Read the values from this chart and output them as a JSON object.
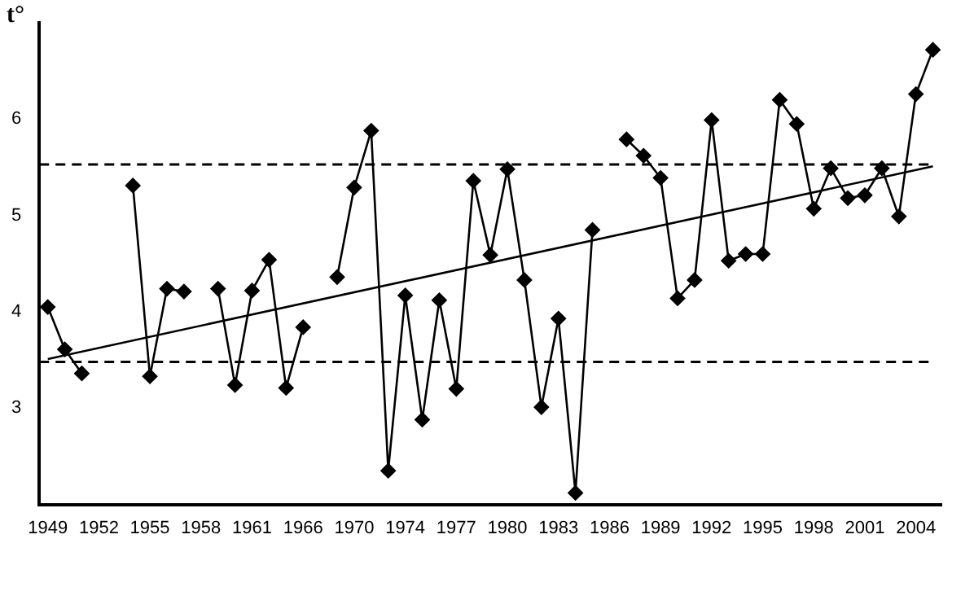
{
  "chart_data": {
    "type": "line",
    "ylabel": "t°",
    "categories": [
      "1949",
      null,
      null,
      "1952",
      null,
      null,
      "1955",
      null,
      null,
      "1958",
      null,
      null,
      "1961",
      null,
      null,
      "1966",
      null,
      null,
      "1970",
      null,
      null,
      "1974",
      null,
      null,
      "1977",
      null,
      null,
      "1980",
      null,
      null,
      "1983",
      null,
      null,
      "1986",
      null,
      null,
      "1989",
      null,
      null,
      "1992",
      null,
      null,
      "1995",
      null,
      null,
      "1998",
      null,
      null,
      "2001",
      null,
      null,
      "2004",
      null
    ],
    "series": [
      {
        "color": "#000000",
        "marker": "diamond",
        "values": [
          4.05,
          3.61,
          3.36,
          null,
          null,
          5.31,
          3.33,
          4.24,
          4.21,
          null,
          4.24,
          3.24,
          4.22,
          4.54,
          3.21,
          3.84,
          null,
          4.36,
          5.29,
          5.88,
          2.35,
          4.17,
          2.88,
          4.12,
          3.2,
          5.36,
          4.59,
          5.48,
          4.33,
          3.01,
          3.93,
          2.12,
          4.85,
          null,
          5.79,
          5.62,
          5.39,
          4.14,
          4.33,
          5.99,
          4.53,
          4.6,
          4.6,
          6.2,
          5.95,
          5.07,
          5.49,
          5.18,
          5.21,
          5.49,
          4.99,
          6.26,
          6.72
        ]
      },
      {
        "type": "line",
        "color": "#000000",
        "marker": "none",
        "values": [
          3.51,
          null,
          null,
          null,
          null,
          null,
          null,
          null,
          null,
          null,
          null,
          null,
          null,
          null,
          null,
          null,
          null,
          null,
          null,
          null,
          null,
          null,
          null,
          null,
          null,
          null,
          null,
          null,
          null,
          null,
          null,
          null,
          null,
          null,
          null,
          null,
          null,
          null,
          null,
          null,
          null,
          null,
          null,
          null,
          null,
          null,
          null,
          null,
          null,
          null,
          null,
          null,
          5.51
        ]
      }
    ],
    "ylim": [
      2,
      7
    ],
    "yticks": [
      3,
      4,
      5,
      6
    ],
    "grid": false,
    "legend": false,
    "ref_lines": [
      {
        "axis": "y",
        "value": 5.53,
        "color": "#000000",
        "line_style": "dashed"
      },
      {
        "axis": "y",
        "value": 3.48,
        "color": "#000000",
        "line_style": "dashed"
      }
    ]
  }
}
